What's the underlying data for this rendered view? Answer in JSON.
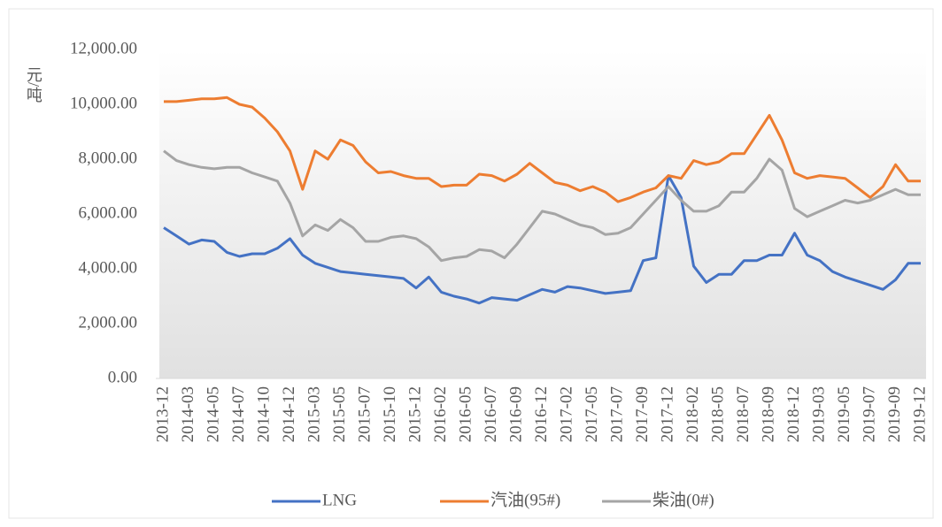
{
  "chart_data": {
    "type": "line",
    "y_label": "元/吨",
    "categories": [
      "2013-12",
      null,
      "2014-03",
      null,
      "2014-05",
      null,
      "2014-07",
      null,
      "2014-10",
      null,
      "2014-12",
      null,
      "2015-03",
      null,
      "2015-05",
      null,
      "2015-07",
      null,
      "2015-10",
      null,
      "2015-12",
      null,
      "2016-02",
      null,
      "2016-05",
      null,
      "2016-07",
      null,
      "2016-09",
      null,
      "2016-12",
      null,
      "2017-02",
      null,
      "2017-05",
      null,
      "2017-07",
      null,
      "2017-09",
      null,
      "2017-12",
      null,
      "2018-02",
      null,
      "2018-05",
      null,
      "2018-07",
      null,
      "2018-09",
      null,
      "2018-12",
      null,
      "2019-03",
      null,
      "2019-05",
      null,
      "2019-07",
      null,
      "2019-09",
      null,
      "2019-12"
    ],
    "series": [
      {
        "name": "LNG",
        "color": "#4472c4",
        "values": [
          5500,
          5200,
          4900,
          5050,
          5000,
          4600,
          4450,
          4550,
          4550,
          4750,
          5100,
          4500,
          4200,
          4050,
          3900,
          3850,
          3800,
          3750,
          3700,
          3650,
          3300,
          3700,
          3150,
          3000,
          2900,
          2750,
          2950,
          2900,
          2850,
          3050,
          3250,
          3150,
          3350,
          3300,
          3200,
          3100,
          3150,
          3200,
          4300,
          4400,
          7400,
          6600,
          4100,
          3500,
          3800,
          3800,
          4300,
          4300,
          4500,
          4500,
          5300,
          4500,
          4300,
          3900,
          3700,
          3550,
          3400,
          3250,
          3600,
          4200,
          4200
        ]
      },
      {
        "name": "汽油(95#)",
        "color": "#ed7d31",
        "values": [
          10100,
          10100,
          10150,
          10200,
          10200,
          10250,
          10000,
          9900,
          9500,
          9000,
          8300,
          6900,
          8300,
          8000,
          8700,
          8500,
          7900,
          7500,
          7550,
          7400,
          7300,
          7300,
          7000,
          7050,
          7050,
          7450,
          7400,
          7200,
          7450,
          7850,
          7500,
          7150,
          7050,
          6850,
          7000,
          6800,
          6450,
          6600,
          6800,
          6950,
          7400,
          7300,
          7950,
          7800,
          7900,
          8200,
          8200,
          8900,
          9600,
          8700,
          7500,
          7300,
          7400,
          7350,
          7300,
          6950,
          6600,
          7000,
          7800,
          7200,
          7200
        ]
      },
      {
        "name": "柴油(0#)",
        "color": "#a5a5a5",
        "values": [
          8300,
          7950,
          7800,
          7700,
          7650,
          7700,
          7700,
          7500,
          7350,
          7200,
          6400,
          5200,
          5600,
          5400,
          5800,
          5500,
          5000,
          5000,
          5150,
          5200,
          5100,
          4800,
          4300,
          4400,
          4450,
          4700,
          4650,
          4400,
          4900,
          5500,
          6100,
          6000,
          5800,
          5600,
          5500,
          5250,
          5300,
          5500,
          6000,
          6500,
          7000,
          6500,
          6100,
          6100,
          6300,
          6800,
          6800,
          7300,
          8000,
          7600,
          6200,
          5900,
          6100,
          6300,
          6500,
          6400,
          6500,
          6700,
          6900,
          6700,
          6700
        ]
      }
    ],
    "ylim": [
      0,
      12000
    ],
    "yticks": [
      {
        "value": 0,
        "label": "0.00"
      },
      {
        "value": 2000,
        "label": "2,000.00"
      },
      {
        "value": 4000,
        "label": "4,000.00"
      },
      {
        "value": 6000,
        "label": "6,000.00"
      },
      {
        "value": 8000,
        "label": "8,000.00"
      },
      {
        "value": 10000,
        "label": "10,000.00"
      },
      {
        "value": 12000,
        "label": "12,000.00"
      }
    ],
    "legend": "bottom"
  }
}
